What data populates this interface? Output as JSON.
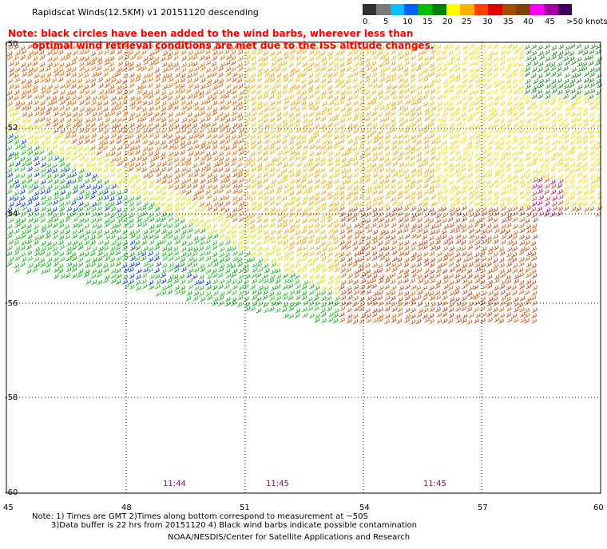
{
  "title": "Rapidscat Winds(12.5KM) v1 20151120 descending",
  "note": {
    "line1": "Note: black circles have been added to the wind barbs, wherever less than",
    "line2": "optimal wind retrieval conditions are met due to the ISS altitude changes."
  },
  "legend": {
    "colors": [
      "#303030",
      "#7a7a7a",
      "#00c0ff",
      "#0060ff",
      "#00c000",
      "#008000",
      "#ffff00",
      "#ffb000",
      "#ff4000",
      "#e00000",
      "#a05000",
      "#804000",
      "#ff00ff",
      "#a000a0",
      "#400060"
    ],
    "labels": [
      "0",
      "5",
      "10",
      "15",
      "20",
      "25",
      "30",
      "35",
      "40",
      "45",
      ">50 knots"
    ]
  },
  "lat_labels": [
    "-50",
    "-52",
    "-54",
    "-56",
    "-58",
    "-60"
  ],
  "lon_labels": [
    "45",
    "48",
    "51",
    "54",
    "57",
    "60"
  ],
  "times": [
    "11:44",
    "11:45",
    "11:45"
  ],
  "footer": {
    "line1": "Note: 1) Times are GMT 2)Times along bottom correspond to measurement at ~50S",
    "line2": "3)Data buffer is 22 hrs from 20151120 4) Black wind barbs indicate possible contamination",
    "line3": "NOAA/NESDIS/Center for Satellite Applications and Research"
  }
}
